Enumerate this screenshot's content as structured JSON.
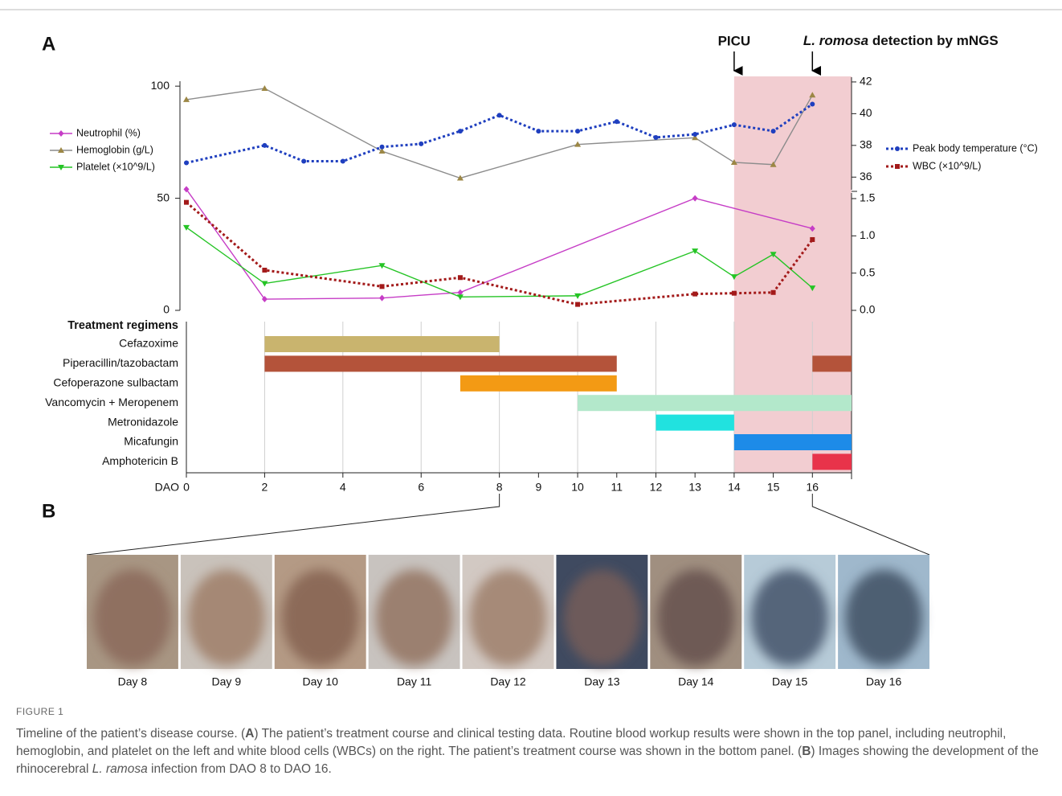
{
  "panel_labels": [
    "A",
    "B"
  ],
  "chart_data": [
    {
      "type": "line",
      "annotations": [
        {
          "text": "PICU",
          "x": 14
        },
        {
          "text_parts": [
            "L. romosa",
            " detection by mNGS"
          ],
          "x": 16
        }
      ],
      "shaded_region": [
        14,
        17
      ],
      "shade_color": "#f2cdd1",
      "xlim": [
        0,
        17
      ],
      "ylim": [
        0,
        104
      ],
      "yticks": [
        0,
        50,
        100
      ],
      "y2lim": [
        0,
        1.5
      ],
      "y2ticks": [
        {
          "value": 0,
          "label": "0.0"
        },
        {
          "value": 0.5,
          "label": "0.5"
        },
        {
          "value": 1,
          "label": "1.0"
        },
        {
          "value": 1.5,
          "label": "1.5"
        }
      ],
      "y3lim": [
        35,
        42.3
      ],
      "y3ticks": [
        36,
        38,
        40,
        42
      ],
      "series": [
        {
          "name": "Neutrophil (%)",
          "color": "#c63dc6",
          "marker_color": "#c63dc6",
          "marker": "diamond",
          "axis": "y",
          "legend": "left",
          "dashed": false,
          "x": [
            0,
            2,
            5,
            7,
            13,
            16
          ],
          "values": [
            54,
            5,
            5.5,
            8,
            50,
            36.5
          ]
        },
        {
          "name": "Hemoglobin (g/L)",
          "color": "#8c8c8c",
          "marker_color": "#9c8745",
          "marker": "triangle-up",
          "axis": "y",
          "legend": "left",
          "dashed": false,
          "x": [
            0,
            2,
            5,
            7,
            10,
            13,
            14,
            15,
            16
          ],
          "values": [
            94,
            99,
            71,
            59,
            74,
            77,
            66,
            65,
            96
          ]
        },
        {
          "name": "Platelet (×10^9/L)",
          "color": "#25c425",
          "marker_color": "#25c425",
          "marker": "triangle-down",
          "axis": "y",
          "legend": "left",
          "dashed": false,
          "x": [
            0,
            2,
            5,
            7,
            10,
            13,
            14,
            15,
            16
          ],
          "values": [
            37,
            12,
            20,
            6,
            6.5,
            26.5,
            15,
            25,
            10
          ]
        },
        {
          "name": "Peak body temperature (°C)",
          "color": "#1f3fbf",
          "marker_color": "#1f3fbf",
          "marker": "circle",
          "axis": "y3",
          "legend": "right",
          "dashed": true,
          "x": [
            0,
            2,
            3,
            4,
            5,
            6,
            7,
            8,
            9,
            10,
            11,
            12,
            13,
            14,
            15,
            16
          ],
          "values": [
            36.9,
            38,
            37,
            37,
            37.9,
            38.1,
            38.9,
            39.9,
            38.9,
            38.9,
            39.5,
            38.5,
            38.7,
            39.3,
            38.9,
            40.6
          ]
        },
        {
          "name": "WBC (×10^9/L)",
          "color": "#a31a1a",
          "marker_color": "#a31a1a",
          "marker": "square",
          "axis": "y2",
          "legend": "right",
          "dashed": true,
          "x": [
            0,
            2,
            5,
            7,
            10,
            13,
            14,
            15,
            16
          ],
          "values": [
            1.45,
            0.54,
            0.32,
            0.44,
            0.08,
            0.22,
            0.23,
            0.24,
            0.95
          ]
        }
      ]
    },
    {
      "type": "gantt",
      "title": "Treatment regimens",
      "x_label": "DAO",
      "xlim": [
        0,
        17
      ],
      "xticks": [
        0,
        2,
        4,
        6,
        8,
        9,
        10,
        11,
        12,
        13,
        14,
        15,
        16
      ],
      "x_grid": [
        2,
        4,
        6,
        8,
        10,
        12,
        14,
        16
      ],
      "tasks": [
        {
          "name": "Cefazoxime",
          "color": "#c9b46e",
          "spans": [
            [
              2,
              8
            ]
          ]
        },
        {
          "name": "Piperacillin/tazobactam",
          "color": "#b4533a",
          "spans": [
            [
              2,
              11
            ],
            [
              16,
              17
            ]
          ]
        },
        {
          "name": "Cefoperazone sulbactam",
          "color": "#f39a14",
          "spans": [
            [
              7,
              11
            ]
          ]
        },
        {
          "name": "Vancomycin + Meropenem",
          "color": "#b3e8cb",
          "spans": [
            [
              10,
              17
            ]
          ]
        },
        {
          "name": "Metronidazole",
          "color": "#21e2df",
          "spans": [
            [
              12,
              14
            ]
          ]
        },
        {
          "name": "Micafungin",
          "color": "#1d8be8",
          "spans": [
            [
              14,
              17
            ]
          ]
        },
        {
          "name": "Amphotericin B",
          "color": "#e8334a",
          "spans": [
            [
              16,
              17
            ]
          ]
        }
      ]
    }
  ],
  "photos": {
    "range": [
      8,
      16
    ],
    "labels": [
      "Day 8",
      "Day 9",
      "Day 10",
      "Day 11",
      "Day 12",
      "Day 13",
      "Day 14",
      "Day 15",
      "Day 16"
    ]
  },
  "caption": {
    "label": "FIGURE 1",
    "parts": [
      "Timeline of the patient’s disease course. (",
      "A",
      ") The patient’s treatment course and clinical testing data. Routine blood workup results were shown in the top panel, including neutrophil, hemoglobin, and platelet on the left and white blood cells (WBCs) on the right. The patient’s treatment course was shown in the bottom panel. (",
      "B",
      ") Images showing the development of the rhinocerebral ",
      "L. ramosa",
      " infection from DAO 8 to DAO 16."
    ]
  }
}
